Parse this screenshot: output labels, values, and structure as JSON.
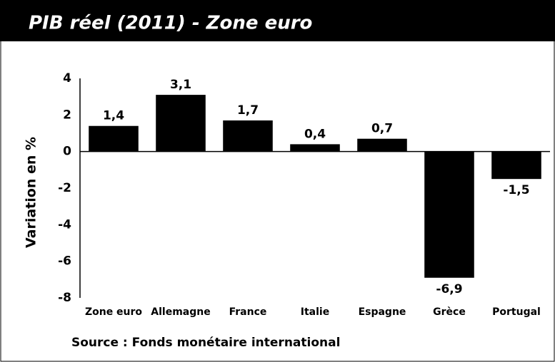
{
  "chart_data": {
    "type": "bar",
    "title": "PIB réel (2011) - Zone euro",
    "y_label": "Variation en %",
    "source": "Source : Fonds monétaire international",
    "categories": [
      "Zone euro",
      "Allemagne",
      "France",
      "Italie",
      "Espagne",
      "Grèce",
      "Portugal"
    ],
    "values": [
      1.4,
      3.1,
      1.7,
      0.4,
      0.7,
      -6.9,
      -1.5
    ],
    "value_labels": [
      "1,4",
      "3,1",
      "1,7",
      "0,4",
      "0,7",
      "-6,9",
      "-1,5"
    ],
    "color": "#000000",
    "ylim": [
      -8,
      4
    ],
    "yticks": [
      4,
      2,
      0,
      -2,
      -4,
      -6,
      -8
    ],
    "grid": false
  }
}
